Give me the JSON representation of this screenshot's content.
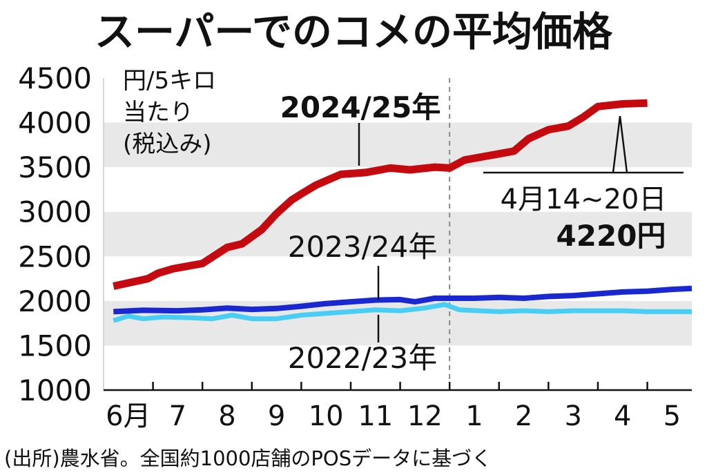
{
  "chart_data": {
    "type": "line",
    "title": "スーパーでのコメの平均価格",
    "ylabel_lines": [
      "円/5キロ",
      "当たり",
      "(税込み)"
    ],
    "ylim": [
      1000,
      4500
    ],
    "yticks": [
      1000,
      1500,
      2000,
      2500,
      3000,
      3500,
      4000,
      4500
    ],
    "ytick_labels": [
      "1000",
      "1500",
      "2000",
      "2500",
      "3000",
      "3500",
      "4000",
      "4500"
    ],
    "xlim": [
      0,
      11.9
    ],
    "month_ticks": [
      {
        "x": 0.5,
        "label": "6月"
      },
      {
        "x": 1.5,
        "label": "7"
      },
      {
        "x": 2.5,
        "label": "8"
      },
      {
        "x": 3.5,
        "label": "9"
      },
      {
        "x": 4.5,
        "label": "10"
      },
      {
        "x": 5.5,
        "label": "11"
      },
      {
        "x": 6.5,
        "label": "12"
      },
      {
        "x": 7.5,
        "label": "1"
      },
      {
        "x": 8.5,
        "label": "2"
      },
      {
        "x": 9.5,
        "label": "3"
      },
      {
        "x": 10.5,
        "label": "4"
      },
      {
        "x": 11.5,
        "label": "5"
      }
    ],
    "year_divider_x": 7.0,
    "series": [
      {
        "name": "2024/25年",
        "color": "#c4090f",
        "points": [
          [
            0.2,
            2165
          ],
          [
            0.9,
            2250
          ],
          [
            1.1,
            2310
          ],
          [
            1.4,
            2360
          ],
          [
            2.0,
            2420
          ],
          [
            2.5,
            2600
          ],
          [
            2.8,
            2640
          ],
          [
            3.2,
            2800
          ],
          [
            3.5,
            2980
          ],
          [
            3.8,
            3130
          ],
          [
            4.0,
            3200
          ],
          [
            4.3,
            3300
          ],
          [
            4.8,
            3420
          ],
          [
            5.3,
            3440
          ],
          [
            5.8,
            3490
          ],
          [
            6.2,
            3470
          ],
          [
            6.7,
            3500
          ],
          [
            7.0,
            3490
          ],
          [
            7.3,
            3580
          ],
          [
            7.7,
            3620
          ],
          [
            8.0,
            3650
          ],
          [
            8.3,
            3680
          ],
          [
            8.6,
            3820
          ],
          [
            9.0,
            3920
          ],
          [
            9.4,
            3960
          ],
          [
            9.7,
            4060
          ],
          [
            10.0,
            4180
          ],
          [
            10.5,
            4210
          ],
          [
            11.0,
            4220
          ]
        ]
      },
      {
        "name": "2023/24年",
        "color": "#1a28cf",
        "points": [
          [
            0.2,
            1880
          ],
          [
            0.8,
            1895
          ],
          [
            1.5,
            1890
          ],
          [
            2.0,
            1900
          ],
          [
            2.5,
            1920
          ],
          [
            3.0,
            1905
          ],
          [
            3.5,
            1915
          ],
          [
            4.0,
            1940
          ],
          [
            4.5,
            1970
          ],
          [
            5.0,
            1990
          ],
          [
            5.5,
            2010
          ],
          [
            6.0,
            2015
          ],
          [
            6.3,
            1990
          ],
          [
            6.7,
            2030
          ],
          [
            7.0,
            2030
          ],
          [
            7.5,
            2030
          ],
          [
            8.0,
            2040
          ],
          [
            8.5,
            2030
          ],
          [
            9.0,
            2050
          ],
          [
            9.5,
            2060
          ],
          [
            10.0,
            2080
          ],
          [
            10.5,
            2100
          ],
          [
            11.0,
            2110
          ],
          [
            11.5,
            2130
          ],
          [
            11.9,
            2140
          ]
        ]
      },
      {
        "name": "2022/23年",
        "color": "#48cef5",
        "points": [
          [
            0.2,
            1780
          ],
          [
            0.5,
            1830
          ],
          [
            0.8,
            1800
          ],
          [
            1.2,
            1820
          ],
          [
            1.8,
            1810
          ],
          [
            2.2,
            1800
          ],
          [
            2.6,
            1840
          ],
          [
            3.0,
            1800
          ],
          [
            3.5,
            1800
          ],
          [
            4.0,
            1840
          ],
          [
            4.5,
            1860
          ],
          [
            5.0,
            1880
          ],
          [
            5.5,
            1900
          ],
          [
            6.0,
            1890
          ],
          [
            6.5,
            1920
          ],
          [
            6.9,
            1960
          ],
          [
            7.2,
            1900
          ],
          [
            7.6,
            1890
          ],
          [
            8.0,
            1880
          ],
          [
            8.5,
            1890
          ],
          [
            9.0,
            1880
          ],
          [
            9.5,
            1890
          ],
          [
            10.0,
            1890
          ],
          [
            10.5,
            1890
          ],
          [
            11.0,
            1880
          ],
          [
            11.5,
            1880
          ],
          [
            11.9,
            1880
          ]
        ]
      }
    ],
    "callout": {
      "date": "4月14~20日",
      "value": "4220円"
    },
    "source": "(出所)農水省。全国約1000店舗のPOSデータに基づく"
  }
}
